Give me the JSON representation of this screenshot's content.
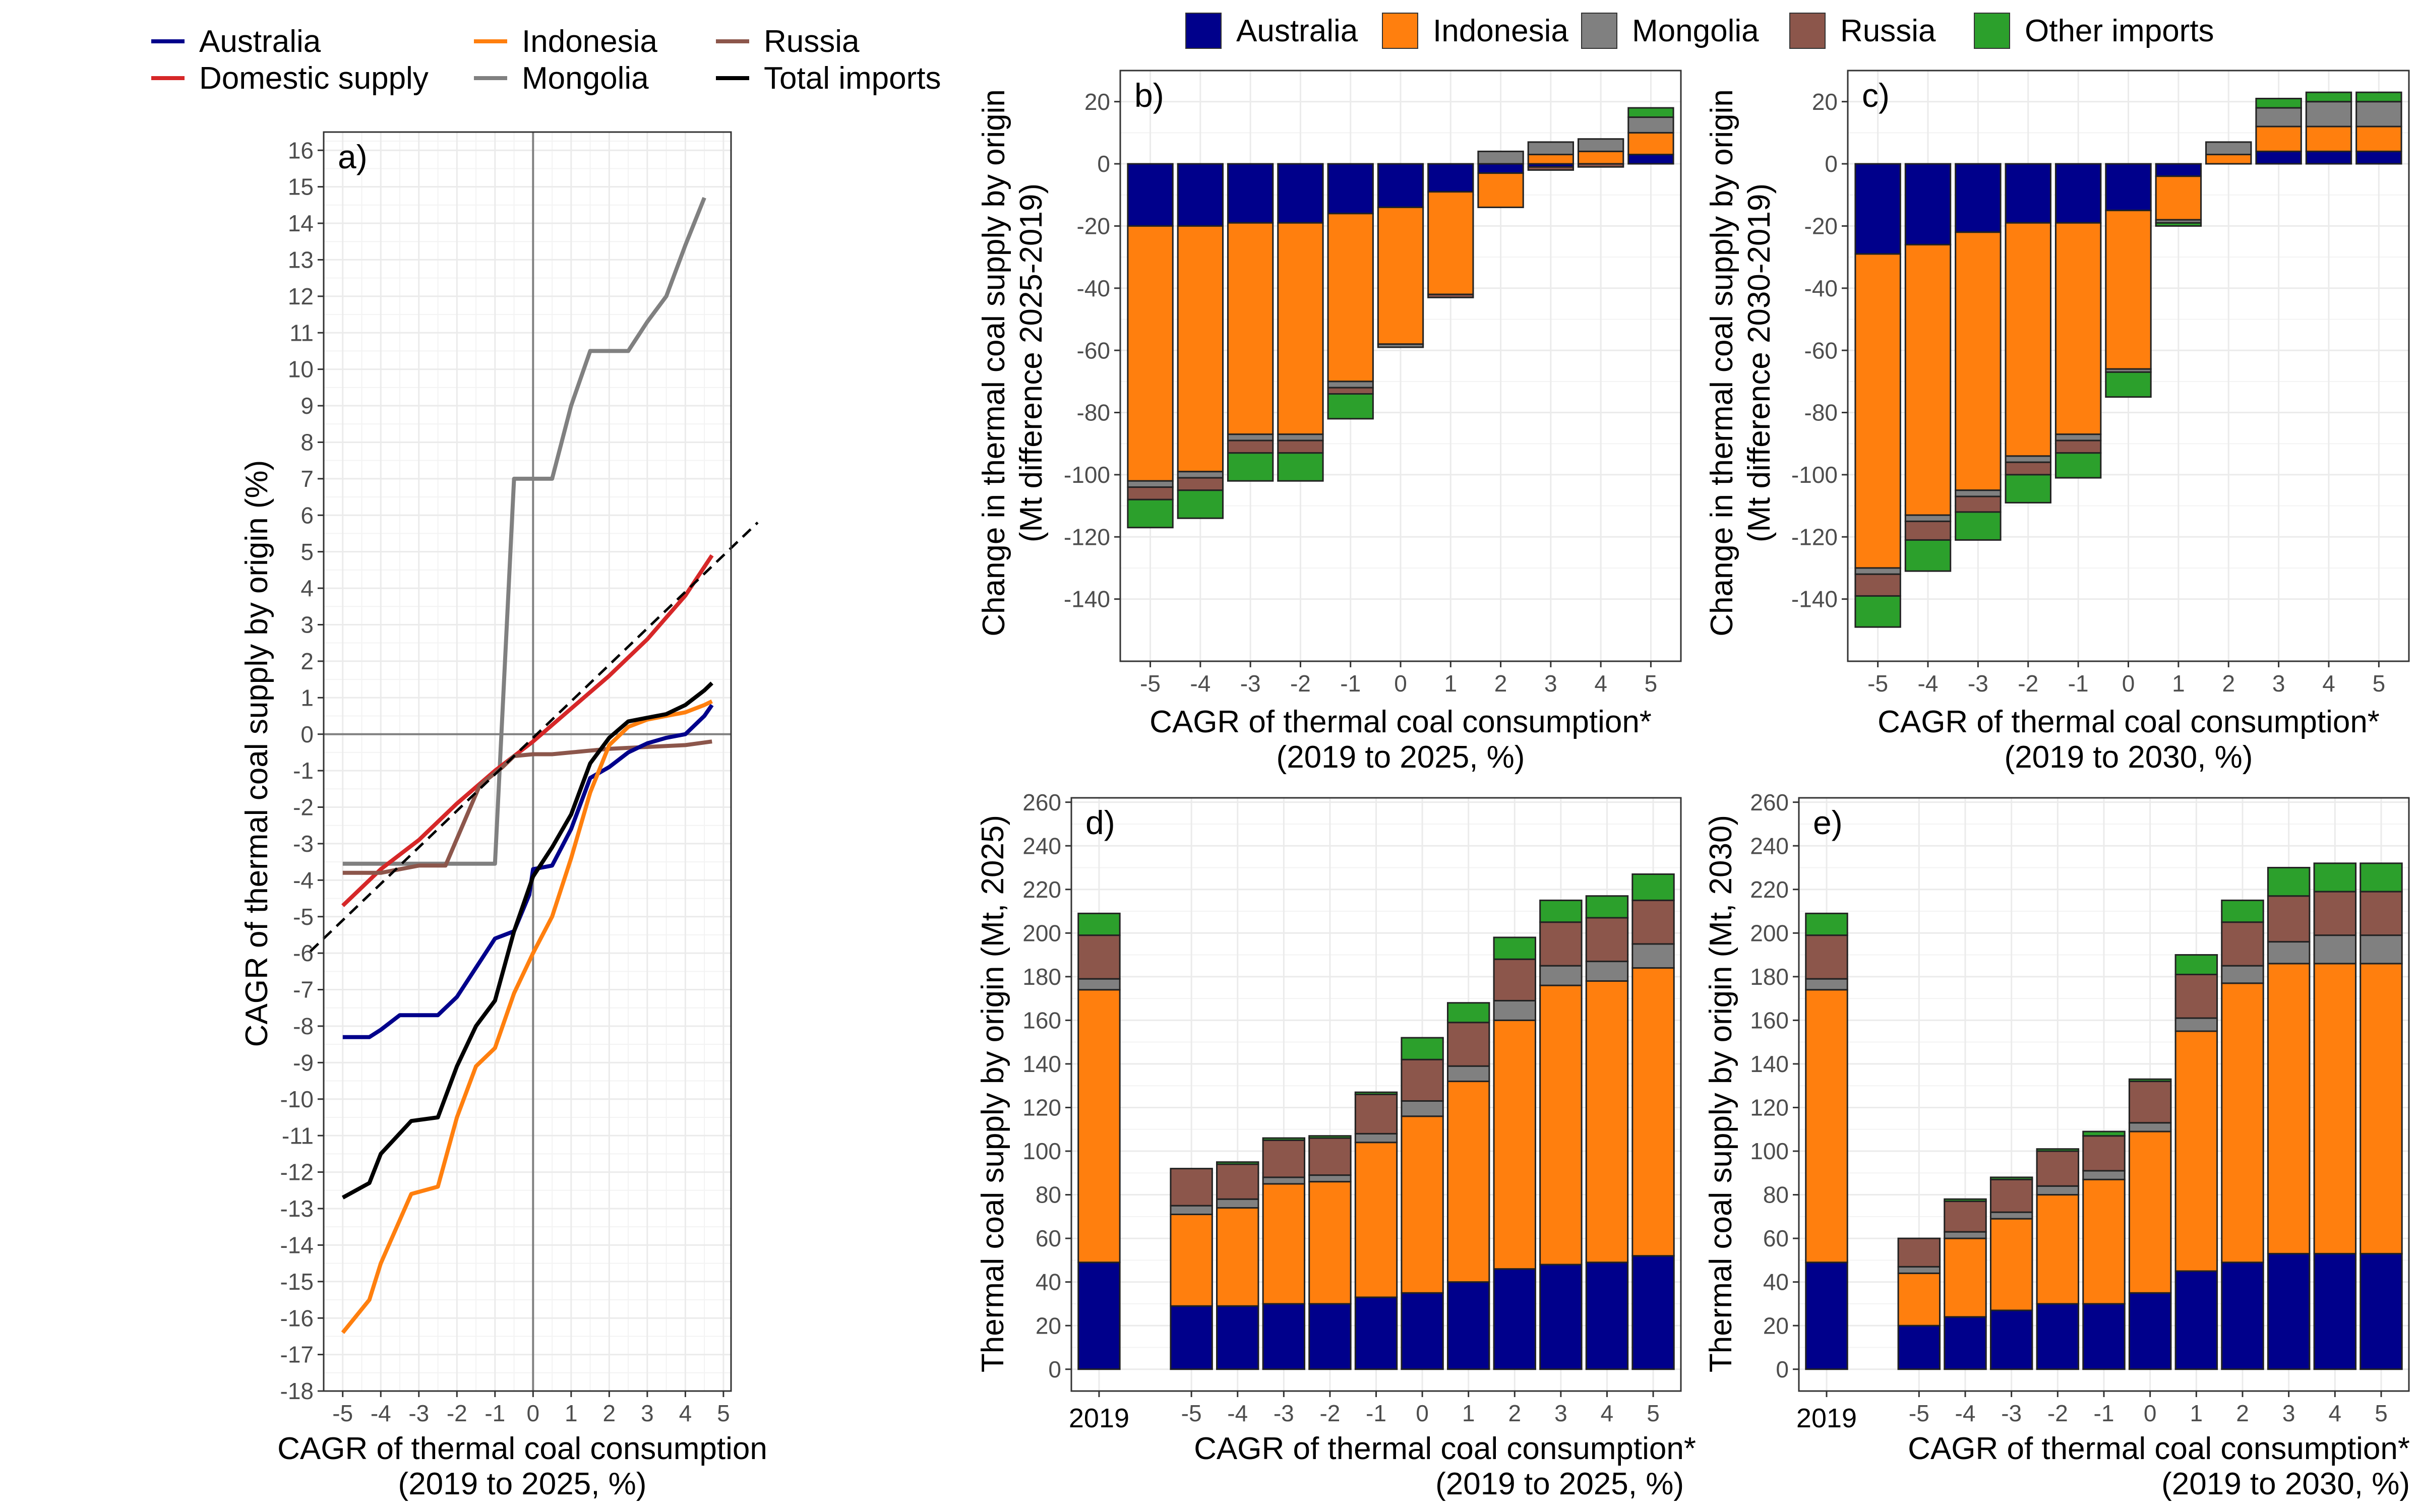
{
  "colors": {
    "Australia": "#00008B",
    "Indonesia": "#FF7F0E",
    "Mongolia": "#808080",
    "Russia": "#8C564B",
    "Other imports": "#2CA02C",
    "Domestic supply": "#D62728",
    "Total imports": "#000000",
    "grid": "#EBEBEB",
    "zero_line": "#808080"
  },
  "legend_a": {
    "items": [
      {
        "label": "Australia",
        "color": "#00008B"
      },
      {
        "label": "Domestic supply",
        "color": "#D62728"
      },
      {
        "label": "Indonesia",
        "color": "#FF7F0E"
      },
      {
        "label": "Mongolia",
        "color": "#808080"
      },
      {
        "label": "Russia",
        "color": "#8C564B"
      },
      {
        "label": "Total imports",
        "color": "#000000"
      }
    ]
  },
  "legend_bars": {
    "items": [
      {
        "label": "Australia",
        "color": "#00008B"
      },
      {
        "label": "Indonesia",
        "color": "#FF7F0E"
      },
      {
        "label": "Mongolia",
        "color": "#808080"
      },
      {
        "label": "Russia",
        "color": "#8C564B"
      },
      {
        "label": "Other imports",
        "color": "#2CA02C"
      }
    ]
  },
  "chart_data": [
    {
      "panel": "a)",
      "type": "line",
      "xlabel": "CAGR of thermal coal consumption",
      "xlabel2": "(2019 to 2025, %)",
      "ylabel": "CAGR of thermal coal supply by origin (%)",
      "xlim": [
        -5.5,
        5.2
      ],
      "ylim": [
        -18,
        16.5
      ],
      "xticks": [
        -5,
        -4,
        -3,
        -2,
        -1,
        0,
        1,
        2,
        3,
        4,
        5
      ],
      "yticks": [
        -18,
        -17,
        -16,
        -15,
        -14,
        -13,
        -12,
        -11,
        -10,
        -9,
        -8,
        -7,
        -6,
        -5,
        -4,
        -3,
        -2,
        -1,
        0,
        1,
        2,
        3,
        4,
        5,
        6,
        7,
        8,
        9,
        10,
        11,
        12,
        13,
        14,
        15,
        16
      ],
      "series": [
        {
          "name": "Mongolia",
          "x": [
            -5,
            -4,
            -3,
            -2,
            -1,
            -0.5,
            0,
            0.5,
            1,
            1.5,
            2,
            2.5,
            3,
            3.5,
            4,
            4.5
          ],
          "y": [
            -3.55,
            -3.55,
            -3.55,
            -3.55,
            -3.55,
            7.0,
            7.0,
            7.0,
            9.0,
            10.5,
            10.5,
            10.5,
            11.3,
            12.0,
            13.4,
            14.7
          ]
        },
        {
          "name": "Domestic supply",
          "x": [
            -5,
            -4,
            -3,
            -2,
            -1,
            0,
            1,
            2,
            3,
            4,
            4.7
          ],
          "y": [
            -4.7,
            -3.7,
            -2.9,
            -1.9,
            -1.0,
            -0.2,
            0.7,
            1.6,
            2.6,
            3.8,
            4.9
          ]
        },
        {
          "name": "Russia",
          "x": [
            -5,
            -4,
            -3,
            -2.3,
            -1.4,
            -0.8,
            -0.5,
            0,
            0.5,
            1,
            2,
            3,
            4,
            4.7
          ],
          "y": [
            -3.8,
            -3.8,
            -3.6,
            -3.6,
            -1.4,
            -0.9,
            -0.6,
            -0.55,
            -0.55,
            -0.5,
            -0.4,
            -0.35,
            -0.3,
            -0.2
          ]
        },
        {
          "name": "Australia",
          "x": [
            -5,
            -4.3,
            -4,
            -3.5,
            -3.2,
            -2.5,
            -2,
            -1.5,
            -1,
            -0.5,
            -0.1,
            0,
            0.5,
            1,
            1.5,
            2,
            2.5,
            3,
            3.5,
            4,
            4.5,
            4.7
          ],
          "y": [
            -8.3,
            -8.3,
            -8.1,
            -7.7,
            -7.7,
            -7.7,
            -7.2,
            -6.4,
            -5.6,
            -5.4,
            -4.4,
            -3.7,
            -3.6,
            -2.6,
            -1.2,
            -0.9,
            -0.5,
            -0.25,
            -0.1,
            0.0,
            0.5,
            0.8
          ]
        },
        {
          "name": "Indonesia",
          "x": [
            -5,
            -4.3,
            -4,
            -3.2,
            -2.5,
            -2,
            -1.5,
            -1,
            -0.5,
            0,
            0.5,
            1,
            1.5,
            2,
            2.5,
            3,
            3.5,
            4,
            4.5,
            4.7
          ],
          "y": [
            -16.4,
            -15.5,
            -14.5,
            -12.6,
            -12.4,
            -10.5,
            -9.1,
            -8.6,
            -7.1,
            -6.0,
            -5.0,
            -3.4,
            -1.6,
            -0.3,
            0.2,
            0.4,
            0.5,
            0.6,
            0.8,
            0.9
          ]
        },
        {
          "name": "Total imports",
          "x": [
            -5,
            -4.3,
            -4,
            -3.2,
            -2.5,
            -2,
            -1.5,
            -1,
            -0.5,
            0,
            0.5,
            1,
            1.5,
            2,
            2.5,
            3,
            3.5,
            4,
            4.5,
            4.7
          ],
          "y": [
            -12.7,
            -12.3,
            -11.5,
            -10.6,
            -10.5,
            -9.1,
            -8.0,
            -7.3,
            -5.4,
            -3.9,
            -3.1,
            -2.2,
            -0.8,
            -0.1,
            0.35,
            0.45,
            0.55,
            0.8,
            1.2,
            1.4
          ]
        },
        {
          "name": "reference",
          "dashed": true,
          "x": [
            -5.5,
            5.2
          ],
          "y": [
            -5.6,
            5.1
          ]
        }
      ]
    },
    {
      "panel": "b)",
      "type": "bar",
      "stacked": true,
      "xlabel": "CAGR of thermal coal consumption*",
      "xlabel2": "(2019 to 2025, %)",
      "ylabel": "Change in thermal coal supply by origin",
      "ylabel2": "(Mt difference 2025-2019)",
      "ylim": [
        -160,
        30
      ],
      "yticks": [
        -140,
        -120,
        -100,
        -80,
        -60,
        -40,
        -20,
        0,
        20
      ],
      "categories": [
        "-5",
        "-4",
        "-3",
        "-2",
        "-1",
        "0",
        "1",
        "2",
        "3",
        "4",
        "5"
      ],
      "series": [
        {
          "name": "Australia",
          "values": [
            -20,
            -20,
            -19,
            -19,
            -16,
            -14,
            -9,
            -3,
            -1,
            0,
            3
          ]
        },
        {
          "name": "Indonesia",
          "values": [
            -82,
            -79,
            -68,
            -68,
            -54,
            -44,
            -33,
            -11,
            3,
            4,
            7
          ]
        },
        {
          "name": "Mongolia",
          "values": [
            -2,
            -2,
            -2,
            -2,
            -2,
            -1,
            0,
            4,
            4,
            4,
            5
          ]
        },
        {
          "name": "Russia",
          "values": [
            -4,
            -4,
            -4,
            -4,
            -2,
            0,
            -1,
            0,
            -1,
            -1,
            0
          ]
        },
        {
          "name": "Other imports",
          "values": [
            -9,
            -9,
            -9,
            -9,
            -8,
            0,
            0,
            0,
            0,
            0,
            3
          ]
        }
      ]
    },
    {
      "panel": "c)",
      "type": "bar",
      "stacked": true,
      "xlabel": "CAGR of thermal coal consumption*",
      "xlabel2": "(2019 to 2030, %)",
      "ylabel": "Change in thermal coal supply by origin",
      "ylabel2": "(Mt difference 2030-2019)",
      "ylim": [
        -160,
        30
      ],
      "yticks": [
        -140,
        -120,
        -100,
        -80,
        -60,
        -40,
        -20,
        0,
        20
      ],
      "categories": [
        "-5",
        "-4",
        "-3",
        "-2",
        "-1",
        "0",
        "1",
        "2",
        "3",
        "4",
        "5"
      ],
      "series": [
        {
          "name": "Australia",
          "values": [
            -29,
            -26,
            -22,
            -19,
            -19,
            -15,
            -4,
            0,
            4,
            4,
            4
          ]
        },
        {
          "name": "Indonesia",
          "values": [
            -101,
            -87,
            -83,
            -75,
            -68,
            -51,
            -14,
            3,
            8,
            8,
            8
          ]
        },
        {
          "name": "Mongolia",
          "values": [
            -2,
            -2,
            -2,
            -2,
            -2,
            -1,
            -1,
            4,
            6,
            8,
            8
          ]
        },
        {
          "name": "Russia",
          "values": [
            -7,
            -6,
            -5,
            -4,
            -4,
            0,
            0,
            0,
            0,
            0,
            0
          ]
        },
        {
          "name": "Other imports",
          "values": [
            -10,
            -10,
            -9,
            -9,
            -8,
            -8,
            -1,
            0,
            3,
            3,
            3
          ]
        }
      ]
    },
    {
      "panel": "d)",
      "type": "bar",
      "stacked": true,
      "xlabel": "CAGR of thermal coal consumption*",
      "xlabel2": "(2019 to 2025, %)",
      "ylabel": "Thermal coal supply by origin (Mt, 2025)",
      "ylim": [
        -10,
        262
      ],
      "yticks": [
        0,
        20,
        40,
        60,
        80,
        100,
        120,
        140,
        160,
        180,
        200,
        220,
        240,
        260
      ],
      "categories": [
        "2019",
        "-5",
        "-4",
        "-3",
        "-2",
        "-1",
        "0",
        "1",
        "2",
        "3",
        "4",
        "5"
      ],
      "series": [
        {
          "name": "Australia",
          "values": [
            49,
            29,
            29,
            30,
            30,
            33,
            35,
            40,
            46,
            48,
            49,
            52
          ]
        },
        {
          "name": "Indonesia",
          "values": [
            125,
            42,
            45,
            55,
            56,
            71,
            81,
            92,
            114,
            128,
            129,
            132
          ]
        },
        {
          "name": "Mongolia",
          "values": [
            5,
            4,
            4,
            3,
            3,
            4,
            7,
            7,
            9,
            9,
            9,
            11
          ]
        },
        {
          "name": "Russia",
          "values": [
            20,
            17,
            16,
            17,
            17,
            18,
            19,
            20,
            19,
            20,
            20,
            20
          ]
        },
        {
          "name": "Other imports",
          "values": [
            10,
            0,
            1,
            1,
            1,
            1,
            10,
            9,
            10,
            10,
            10,
            12
          ]
        }
      ]
    },
    {
      "panel": "e)",
      "type": "bar",
      "stacked": true,
      "xlabel": "CAGR of thermal coal consumption*",
      "xlabel2": "(2019 to 2030, %)",
      "ylabel": "Thermal coal supply by origin (Mt, 2030)",
      "ylim": [
        -10,
        262
      ],
      "yticks": [
        0,
        20,
        40,
        60,
        80,
        100,
        120,
        140,
        160,
        180,
        200,
        220,
        240,
        260
      ],
      "categories": [
        "2019",
        "-5",
        "-4",
        "-3",
        "-2",
        "-1",
        "0",
        "1",
        "2",
        "3",
        "4",
        "5"
      ],
      "series": [
        {
          "name": "Australia",
          "values": [
            49,
            20,
            24,
            27,
            30,
            30,
            35,
            45,
            49,
            53,
            53,
            53
          ]
        },
        {
          "name": "Indonesia",
          "values": [
            125,
            24,
            36,
            42,
            50,
            57,
            74,
            110,
            128,
            133,
            133,
            133
          ]
        },
        {
          "name": "Mongolia",
          "values": [
            5,
            3,
            3,
            3,
            4,
            4,
            4,
            6,
            8,
            10,
            13,
            13
          ]
        },
        {
          "name": "Russia",
          "values": [
            20,
            13,
            14,
            15,
            16,
            16,
            19,
            20,
            20,
            21,
            20,
            20
          ]
        },
        {
          "name": "Other imports",
          "values": [
            10,
            0,
            1,
            1,
            1,
            2,
            1,
            9,
            10,
            13,
            13,
            13
          ]
        }
      ]
    }
  ]
}
